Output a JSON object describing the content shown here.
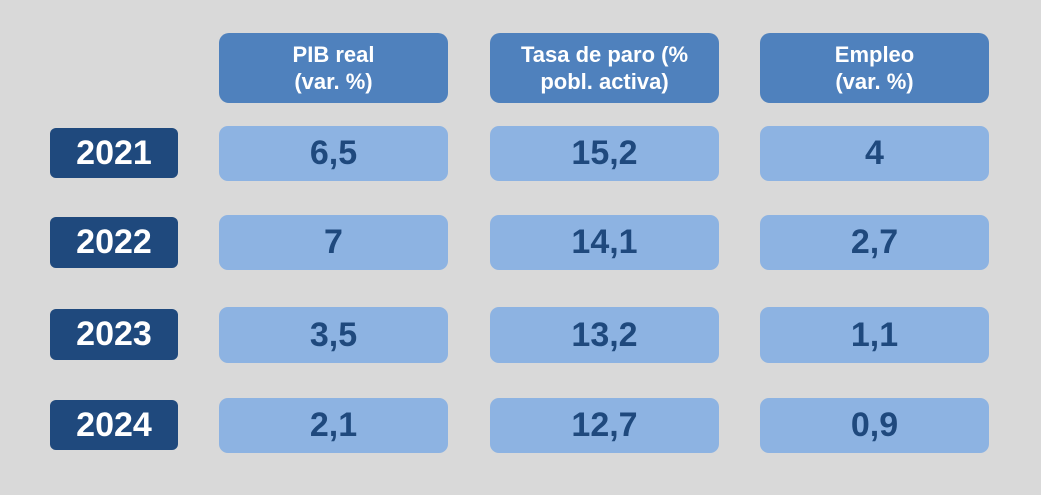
{
  "chart_data": {
    "type": "table",
    "columns": [
      {
        "line1": "PIB real",
        "line2": "(var. %)"
      },
      {
        "line1": "Tasa de paro (%",
        "line2": "pobl. activa)"
      },
      {
        "line1": "Empleo",
        "line2": "(var. %)"
      }
    ],
    "rows": [
      {
        "year": "2021",
        "values": [
          "6,5",
          "15,2",
          "4"
        ]
      },
      {
        "year": "2022",
        "values": [
          "7",
          "14,1",
          "2,7"
        ]
      },
      {
        "year": "2023",
        "values": [
          "3,5",
          "13,2",
          "1,1"
        ]
      },
      {
        "year": "2024",
        "values": [
          "2,1",
          "12,7",
          "0,9"
        ]
      }
    ],
    "colors": {
      "background": "#d9d9d9",
      "header": "#4f81bd",
      "year": "#1f497d",
      "cell": "#8db3e2",
      "value_text": "#1f497d"
    }
  }
}
